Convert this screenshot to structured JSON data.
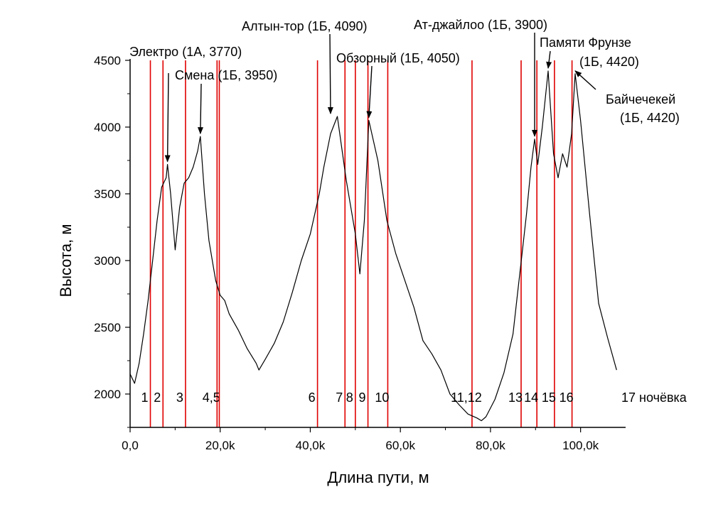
{
  "chart_data": {
    "type": "line",
    "xlabel": "Длина пути, м",
    "ylabel": "Высота, м",
    "xlim": [
      0,
      110000
    ],
    "ylim": [
      1750,
      4500
    ],
    "grid": false,
    "x_ticks": [
      {
        "value": 0,
        "label": "0,0"
      },
      {
        "value": 20000,
        "label": "20,0k"
      },
      {
        "value": 40000,
        "label": "40,0k"
      },
      {
        "value": 60000,
        "label": "60,0k"
      },
      {
        "value": 80000,
        "label": "80,0k"
      },
      {
        "value": 100000,
        "label": "100,0k"
      }
    ],
    "y_ticks": [
      {
        "value": 2000,
        "label": "2000"
      },
      {
        "value": 2500,
        "label": "2500"
      },
      {
        "value": 3000,
        "label": "3000"
      },
      {
        "value": 3500,
        "label": "3500"
      },
      {
        "value": 4000,
        "label": "4000"
      },
      {
        "value": 4500,
        "label": "4500"
      }
    ],
    "series": [
      {
        "color": "#000000",
        "x": [
          0,
          1000,
          2000,
          3000,
          4000,
          5000,
          6000,
          7000,
          8000,
          8300,
          9000,
          10000,
          11000,
          12000,
          13000,
          14000,
          15000,
          15600,
          16500,
          17500,
          18500,
          19000,
          20000,
          21000,
          22000,
          24000,
          26000,
          28000,
          28600,
          30000,
          32000,
          34000,
          36000,
          38000,
          40000,
          42000,
          43000,
          44500,
          46000,
          48000,
          50000,
          51000,
          52000,
          53000,
          55000,
          57000,
          59000,
          61000,
          63000,
          65000,
          67000,
          69000,
          71000,
          73000,
          75000,
          77000,
          78000,
          79000,
          81000,
          83000,
          85000,
          86000,
          87000,
          88000,
          89000,
          89800,
          90500,
          91500,
          92800,
          94000,
          95000,
          96000,
          97000,
          98000,
          98800,
          100000,
          102000,
          104000,
          106000,
          108000
        ],
        "y": [
          2150,
          2080,
          2230,
          2450,
          2700,
          3000,
          3300,
          3550,
          3620,
          3720,
          3500,
          3080,
          3400,
          3580,
          3620,
          3700,
          3820,
          3930,
          3500,
          3150,
          2950,
          2850,
          2740,
          2700,
          2600,
          2480,
          2340,
          2230,
          2180,
          2260,
          2380,
          2540,
          2760,
          3000,
          3200,
          3500,
          3700,
          3950,
          4080,
          3600,
          3200,
          2900,
          3300,
          4050,
          3750,
          3300,
          3050,
          2850,
          2650,
          2400,
          2300,
          2180,
          2000,
          1920,
          1850,
          1820,
          1800,
          1830,
          1960,
          2160,
          2450,
          2750,
          3050,
          3350,
          3700,
          3910,
          3720,
          4000,
          4420,
          3800,
          3620,
          3800,
          3700,
          3950,
          4400,
          4050,
          3350,
          2680,
          2420,
          2180
        ]
      }
    ],
    "checkpoints": [
      {
        "x": 4500,
        "label": "1"
      },
      {
        "x": 7300,
        "label": "2"
      },
      {
        "x": 12300,
        "label": "3"
      },
      {
        "x": 19300,
        "label": "4,5"
      },
      {
        "x": 19800,
        "label": ""
      },
      {
        "x": 41600,
        "label": "6"
      },
      {
        "x": 47700,
        "label": "7"
      },
      {
        "x": 50000,
        "label": "8"
      },
      {
        "x": 52800,
        "label": "9"
      },
      {
        "x": 57200,
        "label": "10"
      },
      {
        "x": 75900,
        "label": "11,12"
      },
      {
        "x": 86800,
        "label": "13"
      },
      {
        "x": 90300,
        "label": "14"
      },
      {
        "x": 94200,
        "label": "15"
      },
      {
        "x": 98100,
        "label": "16"
      }
    ],
    "final_camp_label": "17 ночёвка",
    "checkpoint_color": "#e00000",
    "annotations": [
      {
        "lines": [
          "Электро (1А, 3770)"
        ],
        "x": 8300,
        "y": 3720,
        "arrow": true
      },
      {
        "lines": [
          "Смена (1Б, 3950)"
        ],
        "x": 15600,
        "y": 3930,
        "arrow": true
      },
      {
        "lines": [
          "Алтын-тор (1Б, 4090)"
        ],
        "x": 44500,
        "y": 4080,
        "arrow": true
      },
      {
        "lines": [
          "Обзорный (1Б, 4050)"
        ],
        "x": 53000,
        "y": 4050,
        "arrow": true
      },
      {
        "lines": [
          "Ат-джайлоо (1Б, 3900)"
        ],
        "x": 89800,
        "y": 3910,
        "arrow": true
      },
      {
        "lines": [
          "Памяти Фрунзе",
          "(1Б, 4420)"
        ],
        "x": 92800,
        "y": 4420,
        "arrow": true
      },
      {
        "lines": [
          "Байчечекей",
          "(1Б, 4420)"
        ],
        "x": 98800,
        "y": 4400,
        "arrow": true
      }
    ]
  }
}
